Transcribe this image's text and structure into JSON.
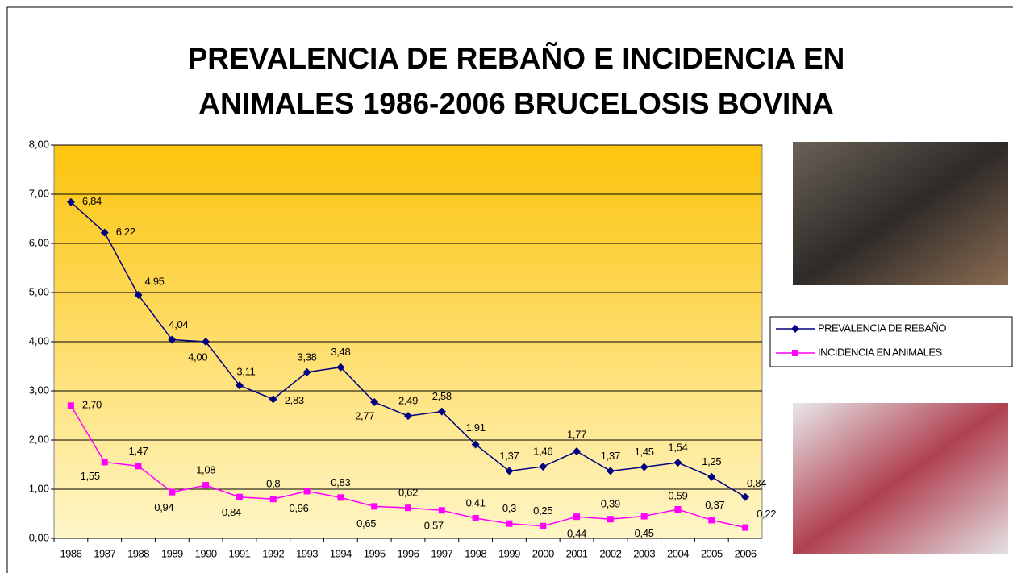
{
  "chart_data": {
    "type": "line",
    "title": [
      "PREVALENCIA DE REBAÑO E INCIDENCIA EN",
      "ANIMALES 1986-2006 BRUCELOSIS BOVINA"
    ],
    "categories": [
      "1986",
      "1987",
      "1988",
      "1989",
      "1990",
      "1991",
      "1992",
      "1993",
      "1994",
      "1995",
      "1996",
      "1997",
      "1998",
      "1999",
      "2000",
      "2001",
      "2002",
      "2003",
      "2004",
      "2005",
      "2006"
    ],
    "series": [
      {
        "name": "PREVALENCIA DE REBAÑO",
        "color": "#000080",
        "marker": "diamond",
        "values": [
          6.84,
          6.22,
          4.95,
          4.04,
          4.0,
          3.11,
          2.83,
          3.38,
          3.48,
          2.77,
          2.49,
          2.58,
          1.91,
          1.37,
          1.46,
          1.77,
          1.37,
          1.45,
          1.54,
          1.25,
          0.84
        ],
        "value_labels": [
          "6,84",
          "6,22",
          "4,95",
          "4,04",
          "4,00",
          "3,11",
          "2,83",
          "3,38",
          "3,48",
          "2,77",
          "2,49",
          "2,58",
          "1,91",
          "1,37",
          "1,46",
          "1,77",
          "1,37",
          "1,45",
          "1,54",
          "1,25",
          "0,84"
        ]
      },
      {
        "name": "INCIDENCIA EN ANIMALES",
        "color": "#ff00ff",
        "marker": "square",
        "values": [
          2.7,
          1.55,
          1.47,
          0.94,
          1.08,
          0.84,
          0.8,
          0.96,
          0.83,
          0.65,
          0.62,
          0.57,
          0.41,
          0.3,
          0.25,
          0.44,
          0.39,
          0.45,
          0.59,
          0.37,
          0.22
        ],
        "value_labels": [
          "2,70",
          "1,55",
          "1,47",
          "0,94",
          "1,08",
          "0,84",
          "0,8",
          "0,96",
          "0,83",
          "0,65",
          "0,62",
          "0,57",
          "0,41",
          "0,3",
          "0,25",
          "0,44",
          "0,39",
          "0,45",
          "0,59",
          "0,37",
          "0,22"
        ]
      }
    ],
    "ylim": [
      0,
      8
    ],
    "yticks": [
      {
        "value": 0,
        "label": "0,00"
      },
      {
        "value": 1,
        "label": "1,00"
      },
      {
        "value": 2,
        "label": "2,00"
      },
      {
        "value": 3,
        "label": "3,00"
      },
      {
        "value": 4,
        "label": "4,00"
      },
      {
        "value": 5,
        "label": "5,00"
      },
      {
        "value": 6,
        "label": "6,00"
      },
      {
        "value": 7,
        "label": "7,00"
      },
      {
        "value": 8,
        "label": "8,00"
      }
    ],
    "grid": true,
    "legend": "right"
  }
}
